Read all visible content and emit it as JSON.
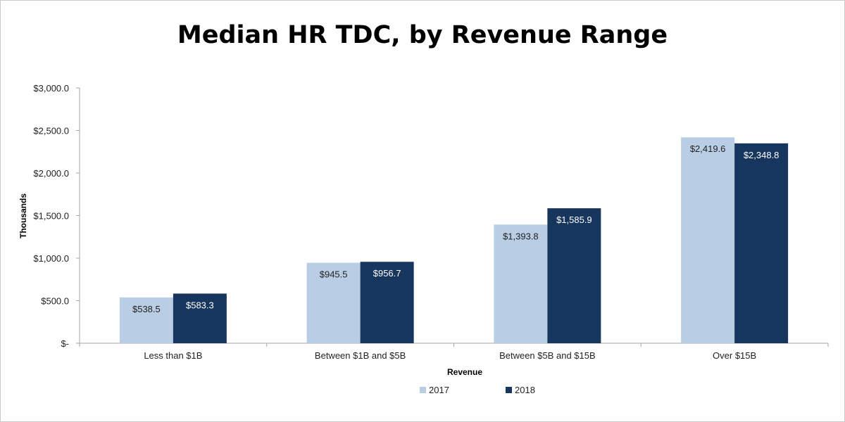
{
  "chart_data": {
    "type": "bar",
    "title": "Median HR TDC, by Revenue Range",
    "xlabel": "Revenue",
    "ylabel": "Thousands",
    "categories": [
      "Less than $1B",
      "Between $1B and $5B",
      "Between $5B and $15B",
      "Over $15B"
    ],
    "series": [
      {
        "name": "2017",
        "color": "#b9cde5",
        "label_color": "#1f1f1f",
        "values": [
          538.5,
          945.5,
          1393.8,
          2419.6
        ],
        "labels": [
          "$538.5",
          "$945.5",
          "$1,393.8",
          "$2,419.6"
        ]
      },
      {
        "name": "2018",
        "color": "#17365d",
        "label_color": "#ffffff",
        "values": [
          583.3,
          956.7,
          1585.9,
          2348.8
        ],
        "labels": [
          "$583.3",
          "$956.7",
          "$1,585.9",
          "$2,348.8"
        ]
      }
    ],
    "ylim": [
      0,
      3000
    ],
    "yticks": [
      0,
      500,
      1000,
      1500,
      2000,
      2500,
      3000
    ],
    "ytick_labels": [
      "$-",
      "$500.0",
      "$1,000.0",
      "$1,500.0",
      "$2,000.0",
      "$2,500.0",
      "$3,000.0"
    ],
    "grid": false,
    "legend_position": "bottom"
  }
}
